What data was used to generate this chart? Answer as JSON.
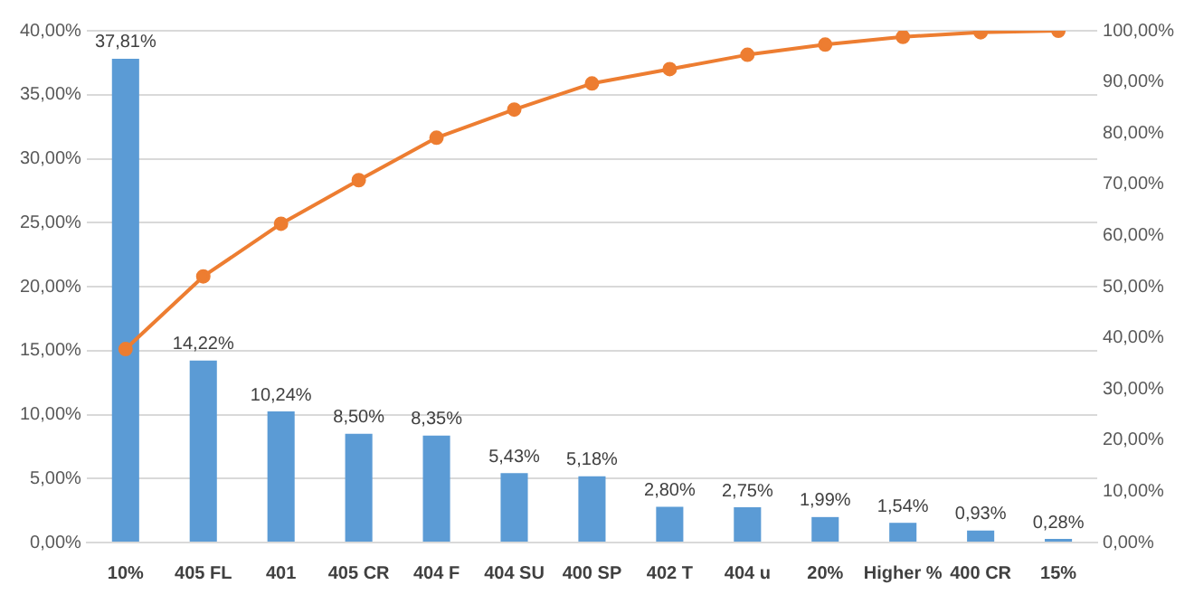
{
  "chart_data": {
    "type": "bar",
    "categories": [
      "10%",
      "405 FL",
      "401",
      "405 CR",
      "404 F",
      "404 SU",
      "400 SP",
      "402 T",
      "404 u",
      "20%",
      "Higher %",
      "400 CR",
      "15%"
    ],
    "series": [
      {
        "color": "#5b9bd5",
        "values": [
          37.81,
          14.22,
          10.24,
          8.5,
          8.35,
          5.43,
          5.18,
          2.8,
          2.75,
          1.99,
          1.54,
          0.93,
          0.28
        ],
        "value_labels": [
          "37,81%",
          "14,22%",
          "10,24%",
          "8,50%",
          "8,35%",
          "5,43%",
          "5,18%",
          "2,80%",
          "2,75%",
          "1,99%",
          "1,54%",
          "0,93%",
          "0,28%"
        ]
      },
      {
        "type": "line",
        "axis": "y2",
        "color": "#ed7d31",
        "marker": "circle",
        "values": [
          37.8,
          52.0,
          62.3,
          70.8,
          79.1,
          84.6,
          89.7,
          92.5,
          95.3,
          97.3,
          98.8,
          99.7,
          100
        ]
      }
    ],
    "ylim": [
      0,
      40
    ],
    "yticks": [
      {
        "value": 0,
        "label": "0,00%"
      },
      {
        "value": 5,
        "label": "5,00%"
      },
      {
        "value": 10,
        "label": "10,00%"
      },
      {
        "value": 15,
        "label": "15,00%"
      },
      {
        "value": 20,
        "label": "20,00%"
      },
      {
        "value": 25,
        "label": "25,00%"
      },
      {
        "value": 30,
        "label": "30,00%"
      },
      {
        "value": 35,
        "label": "35,00%"
      },
      {
        "value": 40,
        "label": "40,00%"
      }
    ],
    "y2lim": [
      0,
      100
    ],
    "y2ticks": [
      {
        "value": 0,
        "label": "0,00%"
      },
      {
        "value": 10,
        "label": "10,00%"
      },
      {
        "value": 20,
        "label": "20,00%"
      },
      {
        "value": 30,
        "label": "30,00%"
      },
      {
        "value": 40,
        "label": "40,00%"
      },
      {
        "value": 50,
        "label": "50,00%"
      },
      {
        "value": 60,
        "label": "60,00%"
      },
      {
        "value": 70,
        "label": "70,00%"
      },
      {
        "value": 80,
        "label": "80,00%"
      },
      {
        "value": 90,
        "label": "90,00%"
      },
      {
        "value": 100,
        "label": "100,00%"
      }
    ],
    "grid": "y",
    "legend": false
  }
}
